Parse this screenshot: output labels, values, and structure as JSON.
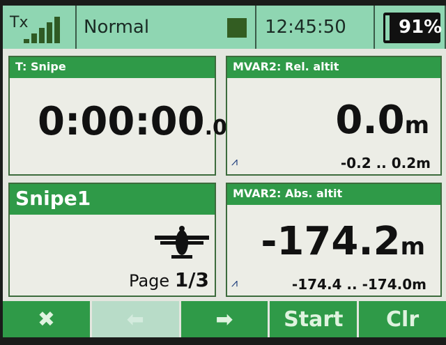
{
  "status": {
    "tx_label": "Tx",
    "signal_bars": 5,
    "mode": "Normal",
    "time": "12:45:50",
    "battery": "91%",
    "battery_percent": 91
  },
  "timer": {
    "title": "T: Snipe",
    "value": "0:00:00",
    "decimal": ".0"
  },
  "rel_alt": {
    "title": "MVAR2: Rel. altit",
    "value": "0.0",
    "unit": "m",
    "range": "-0.2 .. 0.2m"
  },
  "model": {
    "name": "Snipe1",
    "page_label": "Page",
    "page": "1/3"
  },
  "abs_alt": {
    "title": "MVAR2: Abs. altit",
    "value": "-174.2",
    "unit": "m",
    "range": "-174.4 .. -174.0m"
  },
  "footer": {
    "start": "Start",
    "clr": "Clr"
  },
  "colors": {
    "header_green": "#2f9a48",
    "status_bg": "#8fd6b2"
  }
}
